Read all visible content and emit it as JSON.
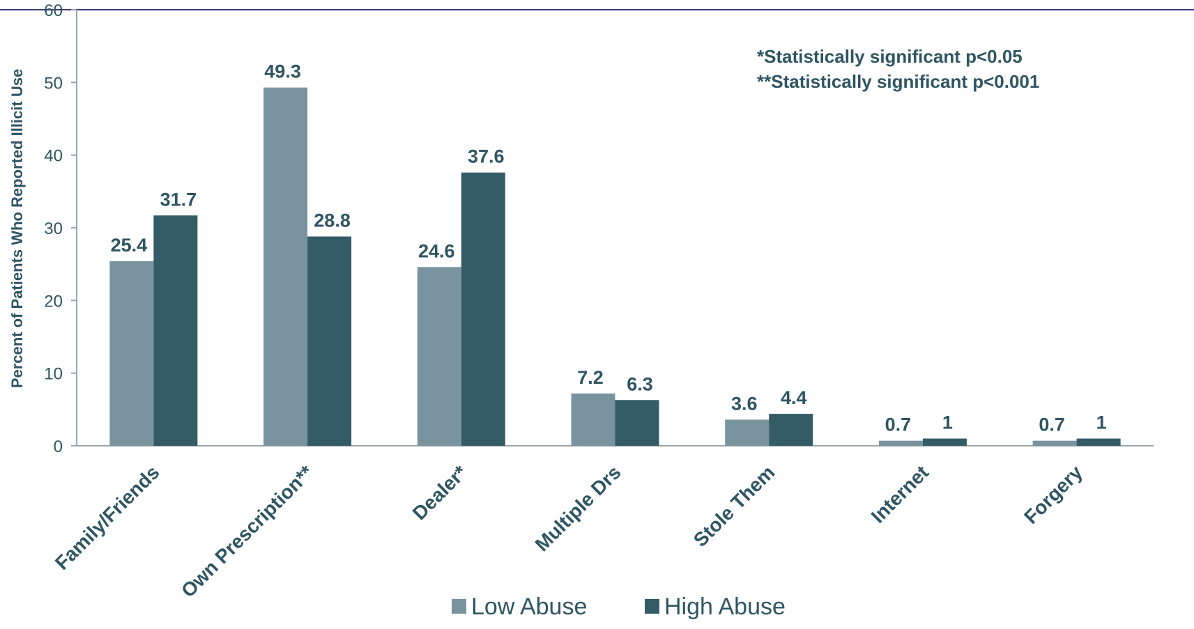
{
  "chart_data": {
    "type": "bar",
    "title": "",
    "xlabel": "",
    "ylabel": "Percent of Patients Who Reported Illicit Use",
    "ylim": [
      0,
      60
    ],
    "yticks": [
      0,
      10,
      20,
      30,
      40,
      50,
      60
    ],
    "grid": false,
    "legend_position": "bottom",
    "categories": [
      "Family/Friends",
      "Own Prescription**",
      "Dealer*",
      "Multiple Drs",
      "Stole Them",
      "Internet",
      "Forgery"
    ],
    "series": [
      {
        "name": "Low Abuse",
        "color": "#7a949f",
        "values": [
          25.4,
          49.3,
          24.6,
          7.2,
          3.6,
          0.7,
          0.7
        ]
      },
      {
        "name": "High Abuse",
        "color": "#345c66",
        "values": [
          31.7,
          28.8,
          37.6,
          6.3,
          4.4,
          1,
          1
        ]
      }
    ],
    "annotations": [
      "*Statistically significant p<0.05",
      "**Statistically significant p<0.001"
    ]
  },
  "colors": {
    "text": "#2f5562",
    "axis": "#9aa5aa",
    "top_rule": "#3c3c7e"
  }
}
